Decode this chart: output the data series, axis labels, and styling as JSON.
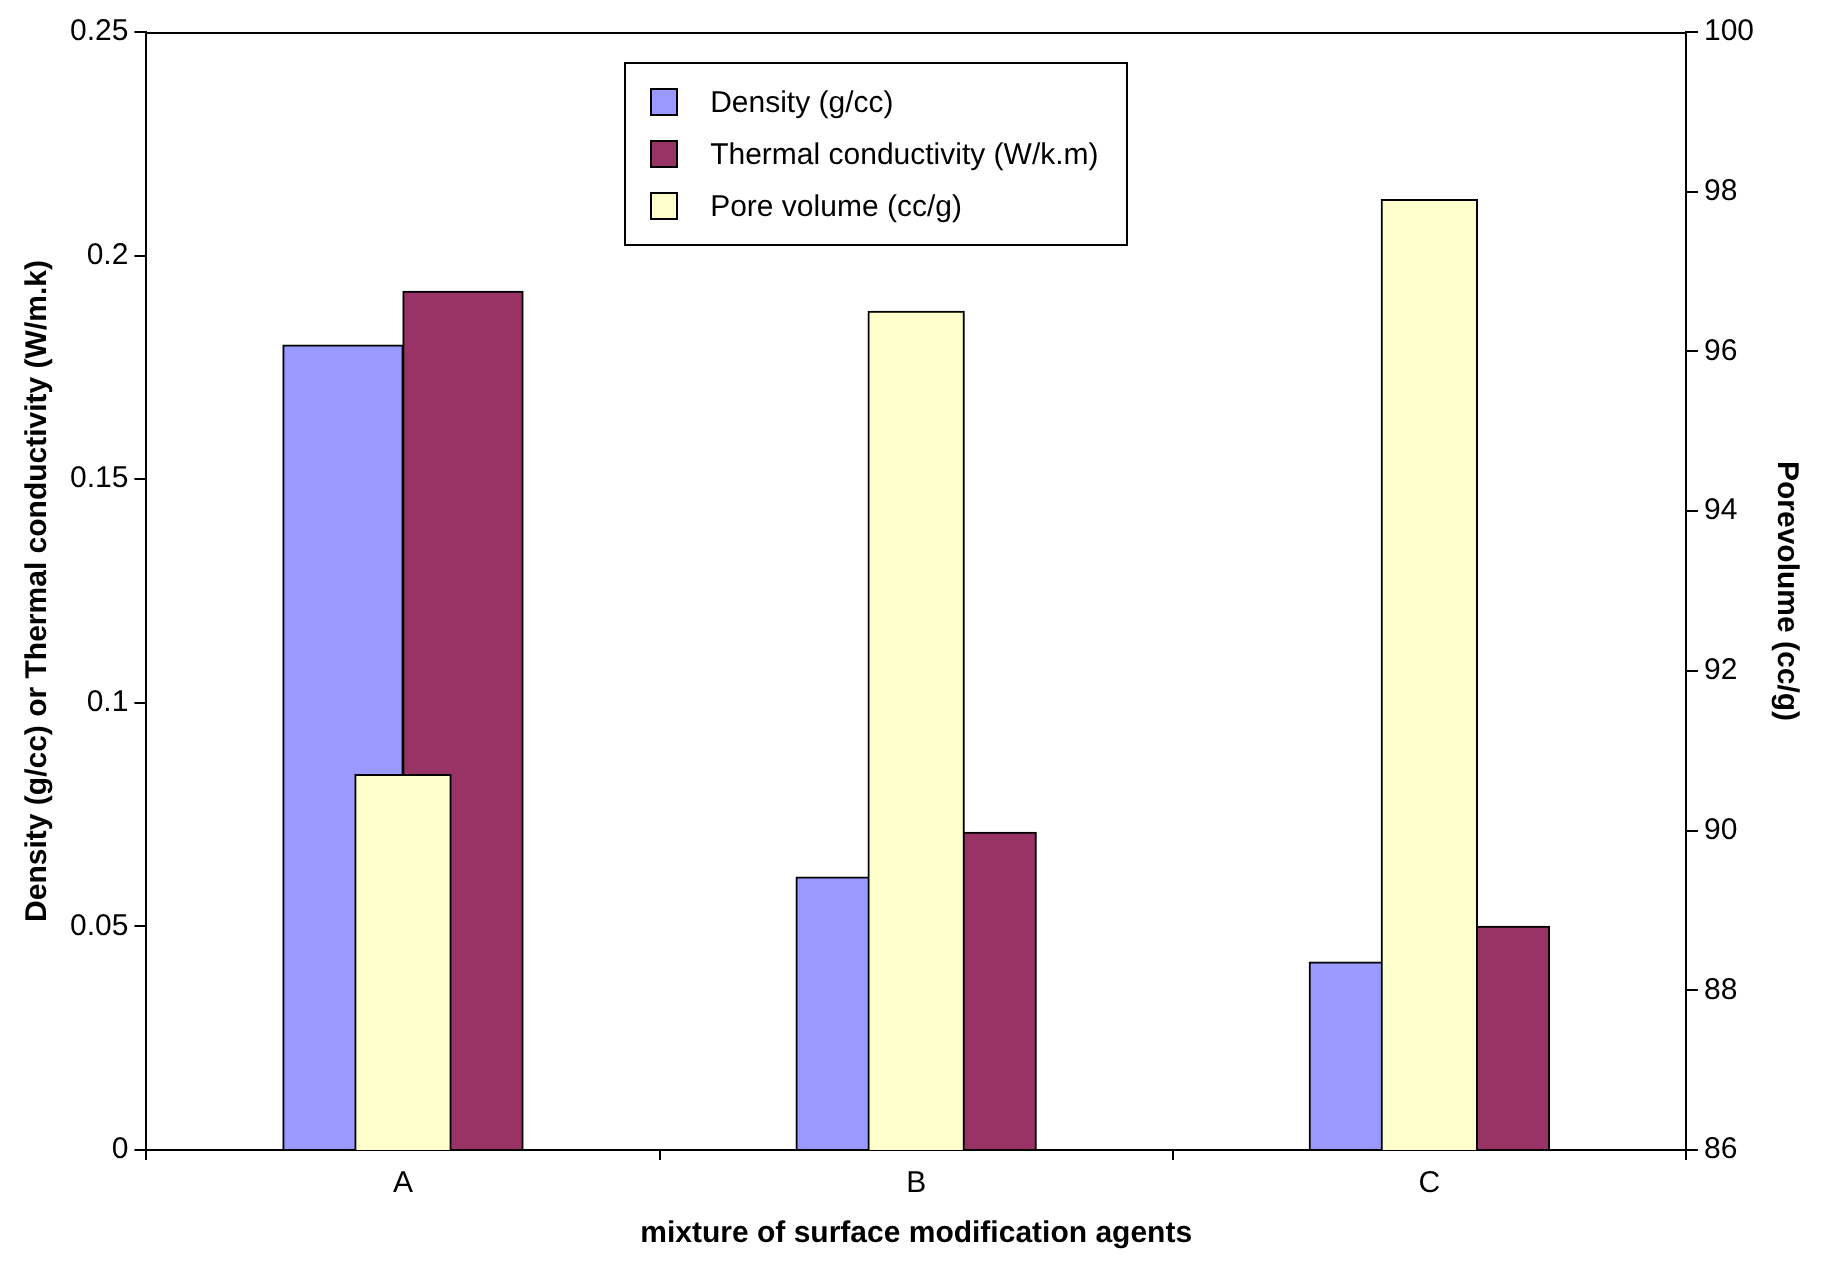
{
  "chart_data": {
    "type": "bar",
    "xlabel": "mixture of surface modification agents",
    "ylabel": "Density (g/cc) or Thermal conductivity (W/m.k)",
    "y2label": "Porevolume (cc/g)",
    "categories": [
      "A",
      "B",
      "C"
    ],
    "series": [
      {
        "name": "Density (g/cc)",
        "color": "#9999ff",
        "values": [
          0.18,
          0.061,
          0.042
        ]
      },
      {
        "name": "Thermal conductivity (W/k.m)",
        "color": "#993366",
        "values": [
          0.192,
          0.071,
          0.05
        ]
      },
      {
        "name": "Pore volume (cc/g)",
        "color": "#ffffcc",
        "values": [
          90.7,
          96.5,
          97.9
        ],
        "axis": "y2"
      }
    ],
    "ylim": [
      0,
      0.25
    ],
    "yticks": [
      0,
      0.05,
      0.1,
      0.15,
      0.2,
      0.25
    ],
    "y2lim": [
      86,
      100
    ],
    "y2ticks": [
      86,
      88,
      90,
      92,
      94,
      96,
      98,
      100
    ],
    "grid": false,
    "legend": "top"
  }
}
